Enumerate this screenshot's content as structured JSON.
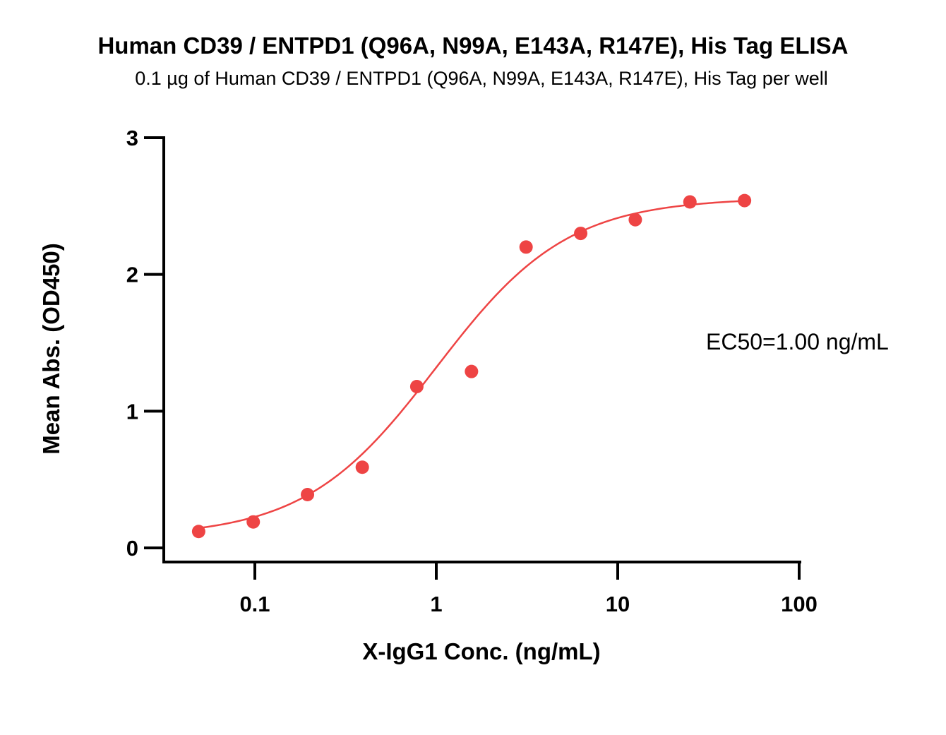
{
  "chart_data": {
    "type": "scatter",
    "title": "Human CD39 / ENTPD1 (Q96A, N99A, E143A, R147E), His Tag ELISA",
    "subtitle": "0.1 µg of Human CD39 / ENTPD1 (Q96A, N99A, E143A, R147E), His Tag per well",
    "xlabel": "X-IgG1 Conc. (ng/mL)",
    "ylabel": "Mean Abs. (OD450)",
    "x_scale": "log",
    "xlim": [
      0.03,
      100
    ],
    "ylim": [
      0,
      3
    ],
    "x_ticks": [
      {
        "value": 0.1,
        "label": "0.1"
      },
      {
        "value": 1,
        "label": "1"
      },
      {
        "value": 10,
        "label": "10"
      },
      {
        "value": 100,
        "label": "100"
      }
    ],
    "y_ticks": [
      {
        "value": 0,
        "label": "0"
      },
      {
        "value": 1,
        "label": "1"
      },
      {
        "value": 2,
        "label": "2"
      },
      {
        "value": 3,
        "label": "3"
      }
    ],
    "grid": false,
    "series": [
      {
        "x": [
          0.049,
          0.098,
          0.195,
          0.391,
          0.781,
          1.563,
          3.125,
          6.25,
          12.5,
          25,
          50
        ],
        "y": [
          0.12,
          0.19,
          0.39,
          0.59,
          1.18,
          1.29,
          2.2,
          2.3,
          2.4,
          2.53,
          2.54
        ],
        "color": "#ee4444"
      }
    ],
    "fit_curve": {
      "model": "4PL",
      "bottom": 0.08,
      "top": 2.56,
      "ec50": 1.0,
      "hill": 1.2,
      "color": "#ee4444"
    },
    "annotations": [
      {
        "text": "EC50=1.00 ng/mL"
      }
    ]
  }
}
